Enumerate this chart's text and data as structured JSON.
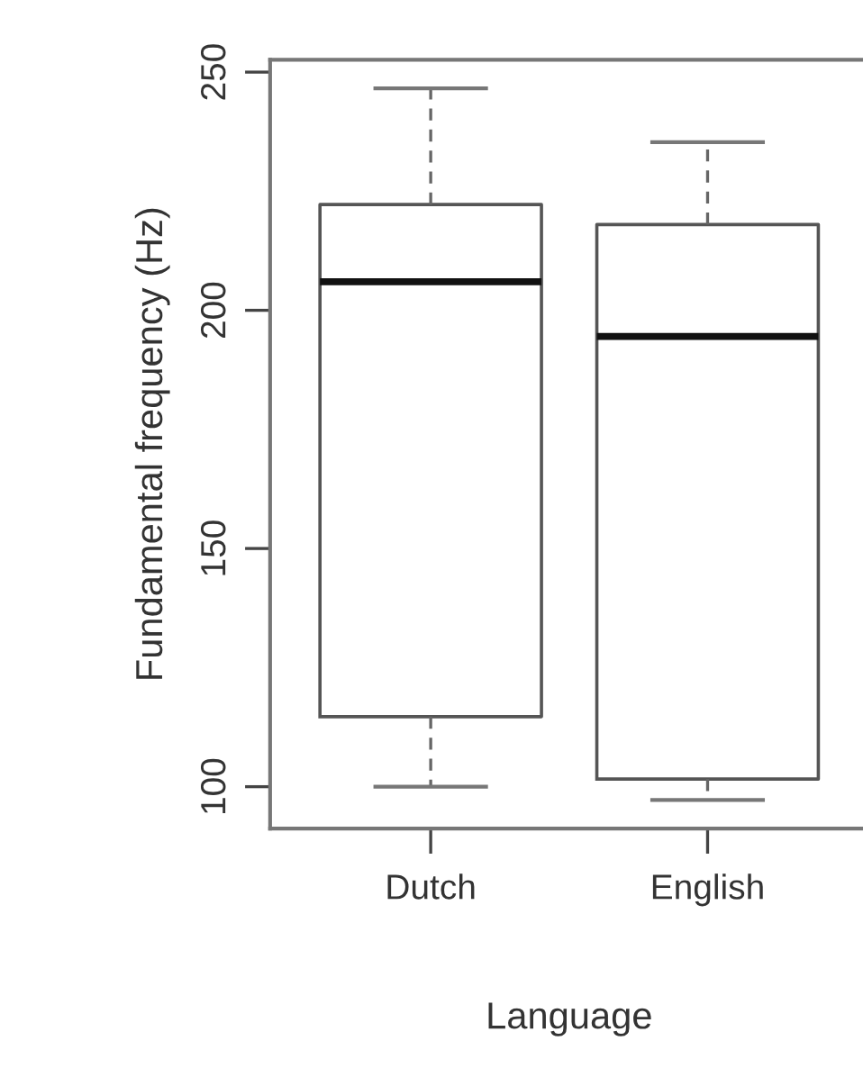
{
  "chart_data": {
    "type": "box",
    "xlabel": "Language",
    "ylabel": "Fundamental frequency (Hz)",
    "categories": [
      "Dutch",
      "English"
    ],
    "boxes": [
      {
        "low": 100,
        "q1": 114.7,
        "median": 206,
        "q3": 222.2,
        "high": 246.6
      },
      {
        "low": 97.2,
        "q1": 101.6,
        "median": 194.5,
        "q3": 218,
        "high": 235.3
      }
    ],
    "ylim": [
      91.2,
      252.6
    ],
    "yticks": [
      100,
      150,
      200,
      250
    ],
    "grid": false
  }
}
